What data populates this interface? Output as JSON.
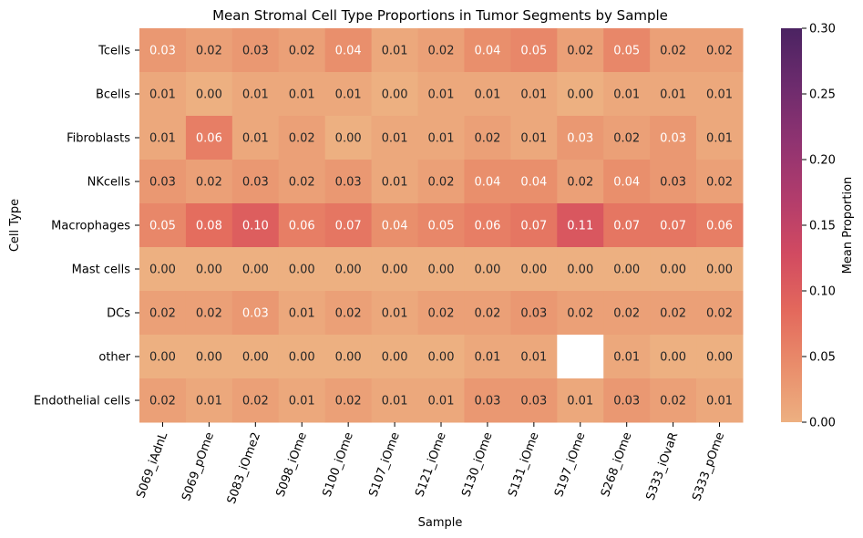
{
  "chart_data": {
    "type": "heatmap",
    "title": "Mean Stromal Cell Type Proportions in Tumor Segments by Sample",
    "xlabel": "Sample",
    "ylabel": "Cell Type",
    "colorbar_label": "Mean Proportion",
    "colorbar_ticks": [
      "0.00",
      "0.05",
      "0.10",
      "0.15",
      "0.20",
      "0.25",
      "0.30"
    ],
    "vmin": 0.0,
    "vmax": 0.3,
    "colormap": "flare",
    "columns": [
      "S069_iAdnL",
      "S069_pOme",
      "S083_iOme2",
      "S098_iOme",
      "S100_iOme",
      "S107_iOme",
      "S121_iOme",
      "S130_iOme",
      "S131_iOme",
      "S197_iOme",
      "S268_iOme",
      "S333_iOvaR",
      "S333_pOme"
    ],
    "rows": [
      "Tcells",
      "Bcells",
      "Fibroblasts",
      "NKcells",
      "Macrophages",
      "Mast cells",
      "DCs",
      "other",
      "Endothelial cells"
    ],
    "values": [
      [
        0.03,
        0.02,
        0.03,
        0.02,
        0.04,
        0.01,
        0.02,
        0.04,
        0.05,
        0.02,
        0.05,
        0.02,
        0.02
      ],
      [
        0.01,
        0.0,
        0.01,
        0.01,
        0.01,
        0.0,
        0.01,
        0.01,
        0.01,
        0.0,
        0.01,
        0.01,
        0.01
      ],
      [
        0.01,
        0.06,
        0.01,
        0.02,
        0.0,
        0.01,
        0.01,
        0.02,
        0.01,
        0.03,
        0.02,
        0.03,
        0.01
      ],
      [
        0.03,
        0.02,
        0.03,
        0.02,
        0.03,
        0.01,
        0.02,
        0.04,
        0.04,
        0.02,
        0.04,
        0.03,
        0.02
      ],
      [
        0.05,
        0.08,
        0.1,
        0.06,
        0.07,
        0.04,
        0.05,
        0.06,
        0.07,
        0.11,
        0.07,
        0.07,
        0.06
      ],
      [
        0.0,
        0.0,
        0.0,
        0.0,
        0.0,
        0.0,
        0.0,
        0.0,
        0.0,
        0.0,
        0.0,
        0.0,
        0.0
      ],
      [
        0.02,
        0.02,
        0.03,
        0.01,
        0.02,
        0.01,
        0.02,
        0.02,
        0.03,
        0.02,
        0.02,
        0.02,
        0.02
      ],
      [
        0.0,
        0.0,
        0.0,
        0.0,
        0.0,
        0.0,
        0.0,
        0.01,
        0.01,
        null,
        0.01,
        0.0,
        0.0
      ],
      [
        0.02,
        0.01,
        0.02,
        0.01,
        0.02,
        0.01,
        0.01,
        0.03,
        0.03,
        0.01,
        0.03,
        0.02,
        0.01
      ]
    ],
    "light_text_cells": [
      [
        0,
        0
      ],
      [
        0,
        4
      ],
      [
        0,
        7
      ],
      [
        0,
        8
      ],
      [
        0,
        10
      ],
      [
        2,
        1
      ],
      [
        2,
        9
      ],
      [
        2,
        11
      ],
      [
        3,
        7
      ],
      [
        3,
        8
      ],
      [
        3,
        10
      ],
      [
        4,
        0
      ],
      [
        4,
        1
      ],
      [
        4,
        2
      ],
      [
        4,
        3
      ],
      [
        4,
        4
      ],
      [
        4,
        5
      ],
      [
        4,
        6
      ],
      [
        4,
        7
      ],
      [
        4,
        8
      ],
      [
        4,
        9
      ],
      [
        4,
        10
      ],
      [
        4,
        11
      ],
      [
        4,
        12
      ],
      [
        6,
        2
      ]
    ],
    "colors": {
      "text_dark": "#262626",
      "text_light": "#ffffff",
      "missing": "#ffffff",
      "colorbar_stops": [
        "#edb081",
        "#e98d6b",
        "#e3685c",
        "#d14a61",
        "#b13c6c",
        "#8f3371",
        "#6c2b6d",
        "#4b2362"
      ]
    }
  }
}
